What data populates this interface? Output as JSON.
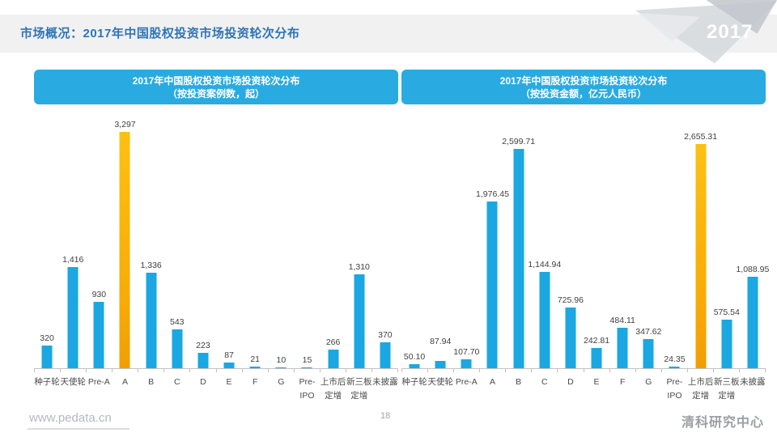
{
  "page": {
    "header_title": "市场概况：2017年中国股权投资市场投资轮次分布",
    "year_badge": "2017",
    "footer": {
      "website": "www.pedata.cn",
      "page_number": "18",
      "brand": "清科研究中心"
    }
  },
  "colors": {
    "bar_blue": "#1ba7e1",
    "bar_highlight": "#fbb00d",
    "title_bar_bg": "#29abe2",
    "header_text": "#2e74b5"
  },
  "chart_data": [
    {
      "type": "bar",
      "title": "2017年中国股权投资市场投资轮次分布",
      "subtitle": "（按投资案例数，起）",
      "xlabel": "",
      "ylabel": "",
      "grid": false,
      "legend": "none",
      "ylim": [
        0,
        3297
      ],
      "highlight_index": 3,
      "categories": [
        "种子轮",
        "天使轮",
        "Pre-A",
        "A",
        "B",
        "C",
        "D",
        "E",
        "F",
        "G",
        "Pre-\nIPO",
        "上市后\n定增",
        "新三板\n定增",
        "未披露"
      ],
      "values": [
        320,
        1416,
        930,
        3297,
        1336,
        543,
        223,
        87,
        21,
        10,
        15,
        266,
        1310,
        370
      ],
      "value_labels": [
        "320",
        "1,416",
        "930",
        "3,297",
        "1,336",
        "543",
        "223",
        "87",
        "21",
        "10",
        "15",
        "266",
        "1,310",
        "370"
      ]
    },
    {
      "type": "bar",
      "title": "2017年中国股权投资市场投资轮次分布",
      "subtitle": "（按投资金额，亿元人民币）",
      "xlabel": "",
      "ylabel": "",
      "grid": false,
      "legend": "none",
      "ylim": [
        0,
        2655.31
      ],
      "highlight_index": 11,
      "categories": [
        "种子轮",
        "天使轮",
        "Pre-A",
        "A",
        "B",
        "C",
        "D",
        "E",
        "F",
        "G",
        "Pre-\nIPO",
        "上市后\n定增",
        "新三板\n定增",
        "未披露"
      ],
      "values": [
        50.1,
        87.94,
        107.7,
        1976.45,
        2599.71,
        1144.94,
        725.96,
        242.81,
        484.11,
        347.62,
        24.35,
        2655.31,
        575.54,
        1088.95
      ],
      "value_labels": [
        "50.10",
        "87.94",
        "107.70",
        "1,976.45",
        "2,599.71",
        "1,144.94",
        "725.96",
        "242.81",
        "484.11",
        "347.62",
        "24.35",
        "2,655.31",
        "575.54",
        "1,088.95"
      ]
    }
  ]
}
